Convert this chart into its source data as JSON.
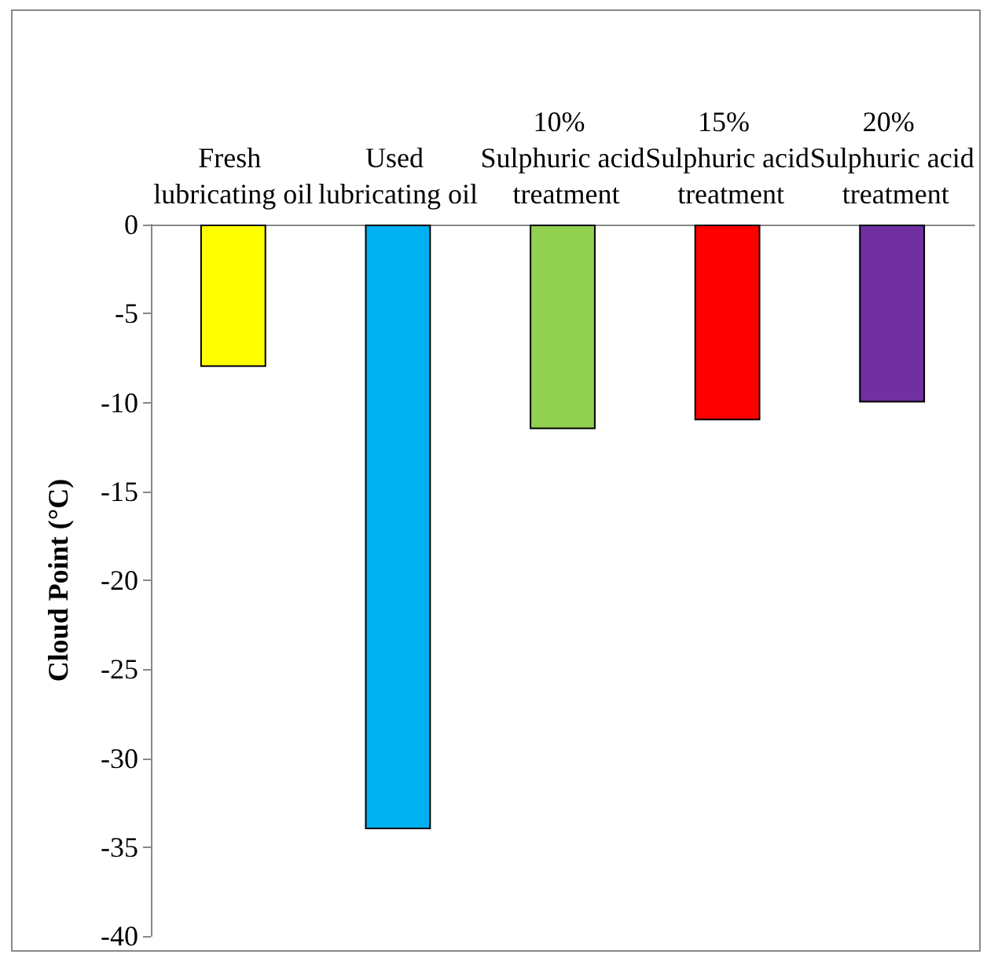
{
  "chart_data": {
    "type": "bar",
    "ylabel": "Cloud Point (°C)",
    "categories": [
      "Fresh lubricating oil",
      "Used lubricating oil",
      "10% Sulphuric acid treatment",
      "15% Sulphuric acid treatment",
      "20% Sulphuric acid treatment"
    ],
    "values": [
      -8,
      -34,
      -11.5,
      -11,
      -10
    ],
    "colors": [
      "#ffff00",
      "#00b0f0",
      "#92d050",
      "#ff0000",
      "#7030a0"
    ],
    "ylim": [
      -40,
      0
    ],
    "yticks": [
      0,
      -5,
      -10,
      -15,
      -20,
      -25,
      -30,
      -35,
      -40
    ],
    "grid": false
  }
}
